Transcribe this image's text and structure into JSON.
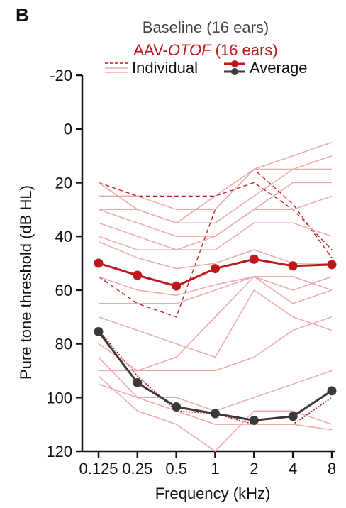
{
  "panel_label": "B",
  "legend": {
    "baseline_label": "Baseline (16 ears)",
    "treated_label_prefix": "AAV-",
    "treated_label_italic": "OTOF",
    "treated_label_suffix": " (16 ears)",
    "individual_label": "Individual",
    "average_label": "Average"
  },
  "colors": {
    "treated": "#c0161b",
    "treated_light": "#eba9a9",
    "baseline": "#3a3a3a",
    "axis": "#111111",
    "legend_baseline_text": "#444444"
  },
  "chart_data": {
    "type": "line",
    "title": "",
    "xlabel": "Frequency (kHz)",
    "ylabel": "Pure tone threshold (dB HL)",
    "categories": [
      "0.125",
      "0.25",
      "0.5",
      "1",
      "2",
      "4",
      "8"
    ],
    "y_ticks": [
      -20,
      0,
      20,
      40,
      60,
      80,
      100,
      120
    ],
    "ylim": [
      -20,
      120
    ],
    "y_inverted": true,
    "grid": false,
    "legend_position": "top",
    "series": [
      {
        "name": "Average",
        "group": "AAV-OTOF",
        "style": "average",
        "values": [
          50,
          54.5,
          58.5,
          52,
          48.5,
          51,
          50.5
        ]
      },
      {
        "name": "Average",
        "group": "Baseline",
        "style": "average",
        "values": [
          75.5,
          94.5,
          103.5,
          106,
          108.5,
          107,
          97.5
        ]
      },
      {
        "group": "Baseline",
        "style": "individual-dotted",
        "values": [
          75,
          92,
          105,
          106,
          110,
          110,
          100
        ]
      },
      {
        "group": "AAV-OTOF",
        "style": "individual-dashed",
        "values": [
          20,
          25,
          25,
          25,
          20,
          30,
          45
        ]
      },
      {
        "group": "AAV-OTOF",
        "style": "individual-dashed",
        "values": [
          55,
          65,
          70,
          30,
          15,
          28,
          48
        ]
      },
      {
        "group": "AAV-OTOF",
        "style": "individual",
        "values": [
          20,
          30,
          35,
          25,
          15,
          10,
          5
        ]
      },
      {
        "group": "AAV-OTOF",
        "style": "individual",
        "values": [
          25,
          25,
          30,
          30,
          15,
          15,
          15
        ]
      },
      {
        "group": "AAV-OTOF",
        "style": "individual",
        "values": [
          30,
          30,
          35,
          35,
          25,
          15,
          10
        ]
      },
      {
        "group": "AAV-OTOF",
        "style": "individual",
        "values": [
          30,
          35,
          40,
          40,
          30,
          20,
          20
        ]
      },
      {
        "group": "AAV-OTOF",
        "style": "individual",
        "values": [
          35,
          40,
          45,
          40,
          30,
          30,
          25
        ]
      },
      {
        "group": "AAV-OTOF",
        "style": "individual",
        "values": [
          40,
          45,
          45,
          45,
          35,
          35,
          40
        ]
      },
      {
        "group": "AAV-OTOF",
        "style": "individual",
        "values": [
          42,
          48,
          52,
          50,
          45,
          50,
          50
        ]
      },
      {
        "group": "AAV-OTOF",
        "style": "individual",
        "values": [
          55,
          60,
          62,
          58,
          55,
          55,
          60
        ]
      },
      {
        "group": "AAV-OTOF",
        "style": "individual",
        "values": [
          65,
          65,
          65,
          60,
          55,
          60,
          55
        ]
      },
      {
        "group": "AAV-OTOF",
        "style": "individual",
        "values": [
          80,
          90,
          85,
          70,
          55,
          65,
          60
        ]
      },
      {
        "group": "AAV-OTOF",
        "style": "individual",
        "values": [
          90,
          90,
          90,
          90,
          85,
          75,
          70
        ]
      },
      {
        "group": "AAV-OTOF",
        "style": "individual",
        "values": [
          95,
          100,
          100,
          105,
          100,
          95,
          90
        ]
      },
      {
        "group": "AAV-OTOF",
        "style": "individual",
        "values": [
          92,
          105,
          110,
          120,
          105,
          105,
          110
        ]
      },
      {
        "group": "AAV-OTOF",
        "style": "individual",
        "values": [
          70,
          75,
          80,
          85,
          60,
          70,
          75
        ]
      },
      {
        "group": "AAV-OTOF",
        "style": "individual",
        "values": [
          85,
          100,
          105,
          110,
          110,
          110,
          112
        ]
      }
    ]
  }
}
